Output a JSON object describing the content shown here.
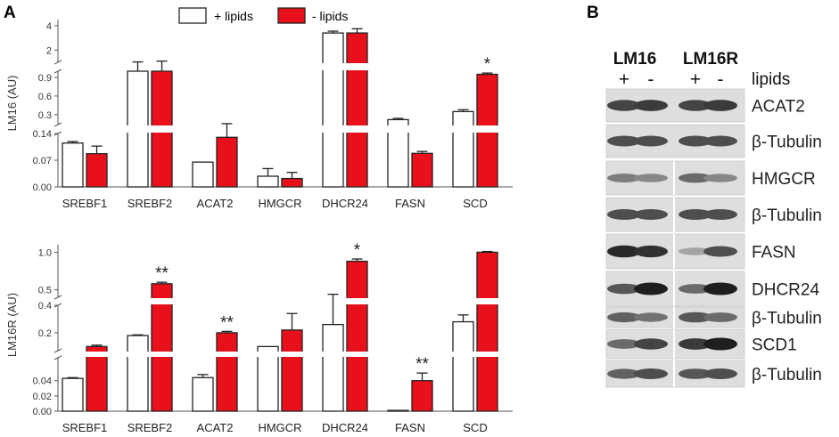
{
  "panels": {
    "A": {
      "label": "A"
    },
    "B": {
      "label": "B"
    }
  },
  "legend": {
    "plus_label": "+ lipids",
    "minus_label": "- lipids"
  },
  "colors": {
    "plus_fill": "#ffffff",
    "minus_fill": "#e8101a",
    "bar_stroke": "#222222"
  },
  "chart_data": [
    {
      "type": "bar",
      "ylabel": "LM16 (AU)",
      "categories": [
        "SREBF1",
        "SREBF2",
        "ACAT2",
        "HMGCR",
        "DHCR24",
        "FASN",
        "SCD"
      ],
      "axis_segments": [
        [
          0,
          0.14
        ],
        [
          0.14,
          1.0
        ],
        [
          1.0,
          4.5
        ]
      ],
      "yticks": [
        "0.00",
        "0.07",
        "0.14",
        "0.3",
        "0.6",
        "0.9",
        "2",
        "4"
      ],
      "series": [
        {
          "name": "+ lipids",
          "values": [
            0.115,
            1.0,
            0.065,
            0.028,
            3.4,
            0.22,
            0.35
          ],
          "errors": [
            0.004,
            0.03,
            0.0,
            0.02,
            0.15,
            0.02,
            0.03
          ]
        },
        {
          "name": "- lipids",
          "values": [
            0.087,
            1.0,
            0.13,
            0.022,
            3.4,
            0.088,
            0.95
          ],
          "errors": [
            0.02,
            0.1,
            0.025,
            0.016,
            0.35,
            0.005,
            0.02
          ]
        }
      ],
      "significance": [
        "",
        "",
        "",
        "",
        "",
        "",
        "*"
      ]
    },
    {
      "type": "bar",
      "ylabel": "LM16R (AU)",
      "categories": [
        "SREBF1",
        "SREBF2",
        "ACAT2",
        "HMGCR",
        "DHCR24",
        "FASN",
        "SCD"
      ],
      "axis_segments": [
        [
          0,
          0.07
        ],
        [
          0.07,
          0.4
        ],
        [
          0.4,
          1.1
        ]
      ],
      "yticks": [
        "0.00",
        "0.02",
        "0.04",
        "0.2",
        "0.4",
        "0.5",
        "1.0"
      ],
      "series": [
        {
          "name": "+ lipids",
          "values": [
            0.043,
            0.18,
            0.044,
            0.1,
            0.26,
            0.001,
            0.28
          ],
          "errors": [
            0.001,
            0.005,
            0.004,
            0.0,
            0.18,
            0.0,
            0.05
          ]
        },
        {
          "name": "- lipids",
          "values": [
            0.1,
            0.58,
            0.2,
            0.22,
            0.88,
            0.04,
            1.0
          ],
          "errors": [
            0.01,
            0.02,
            0.01,
            0.12,
            0.03,
            0.01,
            0.01
          ]
        }
      ],
      "significance": [
        "",
        "**",
        "**",
        "",
        "*",
        "**",
        ""
      ]
    }
  ],
  "blot": {
    "groups": [
      "LM16",
      "LM16R"
    ],
    "lipids_label": "lipids",
    "lane_signs": [
      "+",
      "-",
      "+",
      "-"
    ],
    "rows": [
      {
        "label": "ACAT2",
        "intensity": [
          0.8,
          0.85,
          0.8,
          0.85
        ],
        "split": false
      },
      {
        "label": "β-Tubulin",
        "intensity": [
          0.75,
          0.75,
          0.75,
          0.75
        ],
        "split": false
      },
      {
        "label": "HMGCR",
        "intensity": [
          0.5,
          0.45,
          0.6,
          0.45
        ],
        "split": true
      },
      {
        "label": "β-Tubulin",
        "intensity": [
          0.75,
          0.75,
          0.75,
          0.75
        ],
        "split": true
      },
      {
        "label": "FASN",
        "intensity": [
          0.95,
          0.9,
          0.3,
          0.75
        ],
        "split": true
      },
      {
        "label": "DHCR24",
        "intensity": [
          0.7,
          1.0,
          0.6,
          1.0
        ],
        "split": true
      },
      {
        "label": "β-Tubulin",
        "intensity": [
          0.65,
          0.55,
          0.7,
          0.6
        ],
        "split": true
      },
      {
        "label": "SCD1",
        "intensity": [
          0.6,
          0.8,
          0.85,
          1.0
        ],
        "split": true
      },
      {
        "label": "β-Tubulin",
        "intensity": [
          0.65,
          0.75,
          0.7,
          0.75
        ],
        "split": true
      }
    ]
  }
}
